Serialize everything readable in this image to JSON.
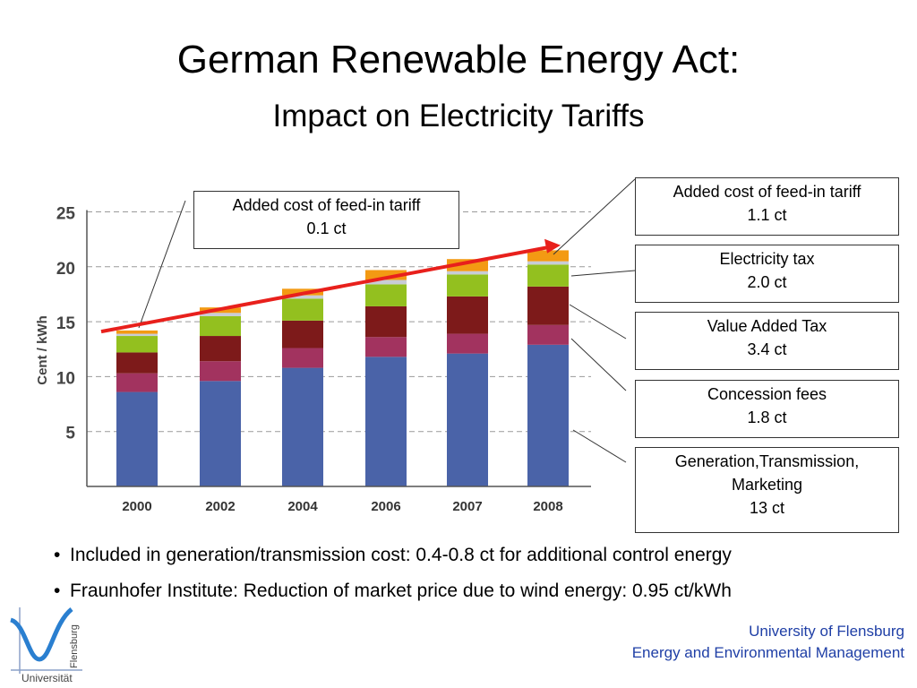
{
  "title": "German Renewable Energy Act:",
  "subtitle": "Impact on Electricity Tariffs",
  "chart_data": {
    "type": "bar",
    "stacked": true,
    "ylabel": "Cent / kWh",
    "ylim": [
      0,
      25
    ],
    "yticks": [
      5,
      10,
      15,
      20,
      25
    ],
    "grid": true,
    "categories": [
      "2000",
      "2002",
      "2004",
      "2006",
      "2007",
      "2008"
    ],
    "series": [
      {
        "name": "Generation,Transmission, Marketing",
        "color": "#4a63a8",
        "values": [
          8.6,
          9.6,
          10.8,
          11.8,
          12.1,
          12.9
        ]
      },
      {
        "name": "Concession fees",
        "color": "#a2335f",
        "values": [
          1.7,
          1.8,
          1.8,
          1.8,
          1.8,
          1.8
        ]
      },
      {
        "name": "Value Added Tax",
        "color": "#7d1a1a",
        "values": [
          1.9,
          2.3,
          2.5,
          2.8,
          3.4,
          3.5
        ]
      },
      {
        "name": "Electricity tax",
        "color": "#93c01f",
        "values": [
          1.5,
          1.8,
          2.0,
          2.0,
          2.0,
          2.0
        ]
      },
      {
        "name": "",
        "color": "#c8ccd6",
        "values": [
          0.2,
          0.3,
          0.3,
          0.4,
          0.3,
          0.3
        ]
      },
      {
        "name": "Added cost of feed-in tariff",
        "color": "#f39a13",
        "values": [
          0.3,
          0.5,
          0.6,
          0.9,
          1.1,
          1.0
        ]
      }
    ],
    "trend_line": {
      "color": "#e8201c",
      "start": {
        "x": "2000",
        "y": 14.1
      },
      "end": {
        "x": "2008",
        "y": 21.8
      }
    }
  },
  "callouts": {
    "top_left": {
      "line1": "Added cost of feed-in tariff",
      "line2": "0.1 ct"
    },
    "feed_in": {
      "line1": "Added cost of feed-in tariff",
      "line2": "1.1 ct"
    },
    "electricity_tax": {
      "line1": "Electricity tax",
      "line2": "2.0 ct"
    },
    "vat": {
      "line1": "Value Added Tax",
      "line2": "3.4 ct"
    },
    "concession": {
      "line1": "Concession fees",
      "line2": "1.8 ct"
    },
    "generation": {
      "line1": "Generation,Transmission,",
      "line2": "Marketing",
      "line3": "13 ct"
    }
  },
  "bullets": [
    "Included in generation/transmission cost: 0.4-0.8 ct for additional control energy",
    "Fraunhofer Institute: Reduction of market price due to wind energy: 0.95 ct/kWh"
  ],
  "footer": {
    "line1": "University of Flensburg",
    "line2": "Energy and Environmental Management"
  },
  "logo": {
    "word1": "Flensburg",
    "word2": "Universität"
  }
}
